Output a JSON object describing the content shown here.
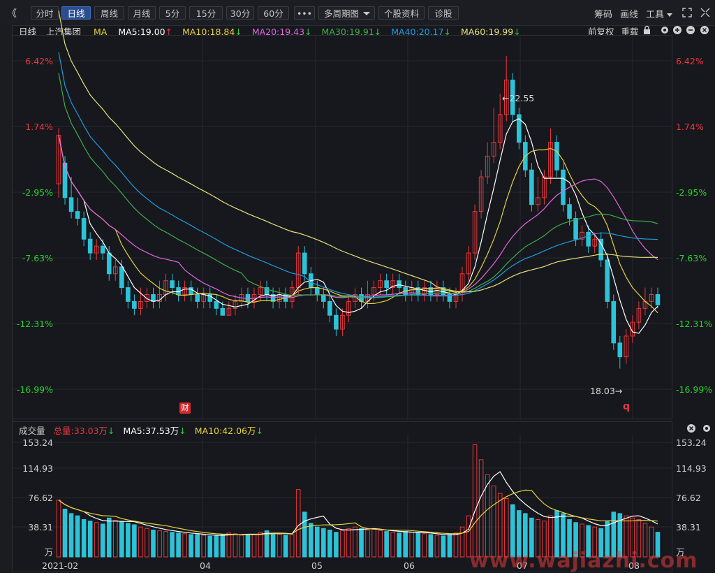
{
  "toolbar": {
    "back": "《",
    "tabs": [
      "分时",
      "日线",
      "周线",
      "月线",
      "5分",
      "15分",
      "30分",
      "60分"
    ],
    "active_tab": "日线",
    "more": "•••",
    "multi_period": "多周期图",
    "stock_info": "个股资料",
    "diagnose": "诊股",
    "right": [
      "筹码",
      "画线",
      "工具"
    ]
  },
  "legend": {
    "period": "日线",
    "stock": "上汽集团",
    "ma": "MA",
    "ma5": "MA5:19.00",
    "ma10": "MA10:18.84",
    "ma20": "MA20:19.43",
    "ma30": "MA30:19.91",
    "ma40": "MA40:20.17",
    "ma60": "MA60:19.99",
    "fq": "前复权",
    "reload": "重载"
  },
  "volume_legend": {
    "title": "成交量",
    "total": "总量:33.03万",
    "ma5": "MA5:37.53万",
    "ma10": "MA10:42.06万"
  },
  "price_axis": [
    "6.42%",
    "1.74%",
    "-2.95%",
    "-7.63%",
    "-12.31%",
    "-16.99%"
  ],
  "volume_axis": [
    "153.24",
    "114.93",
    "76.62",
    "38.31",
    "万"
  ],
  "x_axis": [
    "2021-02",
    "04",
    "05",
    "06",
    "07",
    "08"
  ],
  "annotations": {
    "high": "←22.55",
    "low": "18.03→",
    "fin_badge": "财",
    "q_badge": "q"
  },
  "watermark": "www.wajiazhi.com",
  "colors": {
    "up": "#e8383d",
    "down": "#2cc3d8",
    "ma5": "#ffffff",
    "ma10": "#e6d23c",
    "ma20": "#e066e0",
    "ma30": "#3fae4a",
    "ma40": "#1e9be0",
    "ma60": "#e8e27a",
    "bg": "#16181d"
  },
  "chart_data": {
    "type": "candlestick",
    "x_labels": [
      "2021-02",
      "04",
      "05",
      "06",
      "07",
      "08"
    ],
    "price_pct_ticks": [
      6.42,
      1.74,
      -2.95,
      -7.63,
      -12.31,
      -16.99
    ],
    "price_range": [
      18.03,
      22.55
    ],
    "volume_ticks": [
      153.24,
      114.93,
      76.62,
      38.31
    ],
    "volume_unit": "万",
    "candles": [
      [
        20.7,
        21.4,
        20.5,
        21.5
      ],
      [
        21.0,
        20.5,
        20.4,
        21.1
      ],
      [
        20.5,
        20.3,
        20.2,
        20.8
      ],
      [
        20.3,
        20.2,
        20.1,
        20.5
      ],
      [
        20.2,
        19.9,
        19.8,
        20.3
      ],
      [
        19.9,
        19.7,
        19.6,
        20.0
      ],
      [
        19.7,
        19.8,
        19.6,
        19.9
      ],
      [
        19.8,
        19.7,
        19.6,
        19.9
      ],
      [
        19.7,
        19.4,
        19.3,
        19.8
      ],
      [
        19.4,
        19.5,
        19.3,
        19.6
      ],
      [
        19.5,
        19.2,
        19.1,
        19.6
      ],
      [
        19.2,
        19.0,
        18.9,
        19.3
      ],
      [
        19.0,
        18.9,
        18.8,
        19.1
      ],
      [
        18.9,
        19.0,
        18.8,
        19.2
      ],
      [
        19.0,
        19.1,
        18.9,
        19.2
      ],
      [
        19.1,
        19.0,
        18.9,
        19.2
      ],
      [
        19.0,
        19.1,
        18.9,
        19.3
      ],
      [
        19.1,
        19.3,
        19.0,
        19.4
      ],
      [
        19.3,
        19.2,
        19.1,
        19.4
      ],
      [
        19.2,
        19.1,
        19.0,
        19.3
      ],
      [
        19.1,
        19.2,
        19.0,
        19.3
      ],
      [
        19.2,
        19.1,
        19.0,
        19.3
      ],
      [
        19.1,
        19.0,
        18.9,
        19.2
      ],
      [
        19.0,
        19.1,
        18.9,
        19.2
      ],
      [
        19.1,
        19.0,
        18.9,
        19.2
      ],
      [
        19.0,
        18.9,
        18.8,
        19.1
      ],
      [
        18.9,
        18.8,
        18.8,
        19.0
      ],
      [
        18.8,
        18.9,
        18.8,
        19.0
      ],
      [
        18.9,
        19.0,
        18.8,
        19.1
      ],
      [
        19.0,
        19.1,
        18.9,
        19.2
      ],
      [
        19.1,
        19.0,
        18.9,
        19.2
      ],
      [
        19.0,
        19.1,
        18.9,
        19.2
      ],
      [
        19.1,
        19.2,
        19.0,
        19.3
      ],
      [
        19.2,
        19.1,
        19.0,
        19.3
      ],
      [
        19.1,
        19.0,
        18.9,
        19.2
      ],
      [
        19.0,
        19.1,
        18.9,
        19.2
      ],
      [
        19.1,
        19.0,
        18.9,
        19.2
      ],
      [
        19.0,
        19.2,
        18.9,
        19.3
      ],
      [
        19.2,
        19.7,
        19.1,
        19.8
      ],
      [
        19.7,
        19.4,
        19.3,
        19.8
      ],
      [
        19.4,
        19.2,
        19.1,
        19.5
      ],
      [
        19.2,
        19.1,
        19.0,
        19.3
      ],
      [
        19.1,
        19.0,
        18.9,
        19.2
      ],
      [
        19.0,
        18.8,
        18.7,
        19.1
      ],
      [
        18.8,
        18.6,
        18.5,
        18.9
      ],
      [
        18.6,
        18.8,
        18.5,
        18.9
      ],
      [
        18.8,
        19.0,
        18.7,
        19.1
      ],
      [
        19.0,
        19.1,
        18.9,
        19.2
      ],
      [
        19.1,
        19.0,
        18.9,
        19.2
      ],
      [
        19.0,
        19.1,
        18.9,
        19.3
      ],
      [
        19.1,
        19.2,
        19.0,
        19.3
      ],
      [
        19.2,
        19.3,
        19.1,
        19.4
      ],
      [
        19.3,
        19.2,
        19.1,
        19.4
      ],
      [
        19.2,
        19.3,
        19.1,
        19.4
      ],
      [
        19.3,
        19.2,
        19.1,
        19.4
      ],
      [
        19.2,
        19.1,
        19.0,
        19.3
      ],
      [
        19.1,
        19.2,
        19.0,
        19.3
      ],
      [
        19.2,
        19.1,
        19.0,
        19.3
      ],
      [
        19.1,
        19.2,
        19.0,
        19.3
      ],
      [
        19.2,
        19.1,
        19.0,
        19.3
      ],
      [
        19.1,
        19.2,
        19.0,
        19.3
      ],
      [
        19.2,
        19.1,
        19.0,
        19.3
      ],
      [
        19.1,
        19.0,
        18.9,
        19.2
      ],
      [
        19.0,
        19.1,
        18.9,
        19.2
      ],
      [
        19.1,
        19.4,
        19.0,
        19.5
      ],
      [
        19.4,
        19.7,
        19.3,
        19.8
      ],
      [
        19.7,
        20.3,
        19.6,
        20.4
      ],
      [
        20.3,
        20.8,
        20.2,
        20.9
      ],
      [
        20.8,
        21.1,
        20.7,
        21.3
      ],
      [
        21.1,
        21.3,
        21.0,
        21.8
      ],
      [
        21.3,
        21.7,
        21.2,
        22.0
      ],
      [
        21.7,
        22.2,
        21.6,
        22.55
      ],
      [
        22.2,
        21.7,
        21.6,
        22.3
      ],
      [
        21.7,
        21.3,
        21.2,
        21.8
      ],
      [
        21.3,
        20.9,
        20.8,
        21.4
      ],
      [
        20.9,
        20.4,
        20.3,
        21.0
      ],
      [
        20.4,
        20.5,
        20.3,
        20.8
      ],
      [
        20.5,
        20.8,
        20.4,
        20.9
      ],
      [
        20.8,
        21.3,
        20.7,
        21.5
      ],
      [
        21.3,
        20.9,
        20.8,
        21.4
      ],
      [
        20.9,
        20.4,
        20.3,
        21.0
      ],
      [
        20.4,
        20.2,
        20.1,
        20.5
      ],
      [
        20.2,
        19.9,
        19.8,
        20.3
      ],
      [
        19.9,
        20.0,
        19.8,
        20.1
      ],
      [
        20.0,
        19.8,
        19.7,
        20.1
      ],
      [
        19.8,
        19.9,
        19.7,
        20.0
      ],
      [
        19.9,
        19.6,
        19.5,
        20.0
      ],
      [
        19.6,
        19.0,
        18.9,
        19.7
      ],
      [
        19.0,
        18.4,
        18.3,
        19.1
      ],
      [
        18.4,
        18.2,
        18.03,
        18.5
      ],
      [
        18.2,
        18.5,
        18.1,
        18.6
      ],
      [
        18.5,
        18.7,
        18.4,
        18.8
      ],
      [
        18.7,
        18.9,
        18.6,
        19.0
      ],
      [
        18.9,
        19.0,
        18.8,
        19.2
      ],
      [
        19.0,
        19.1,
        18.9,
        19.2
      ],
      [
        19.1,
        18.95,
        18.9,
        19.2
      ]
    ],
    "volumes": [
      76,
      64,
      58,
      55,
      50,
      48,
      46,
      44,
      52,
      49,
      47,
      45,
      43,
      40,
      38,
      36,
      35,
      34,
      33,
      32,
      31,
      30,
      30,
      29,
      28,
      28,
      30,
      32,
      31,
      29,
      30,
      30,
      33,
      35,
      31,
      30,
      29,
      30,
      90,
      60,
      45,
      40,
      38,
      36,
      33,
      35,
      38,
      40,
      38,
      36,
      37,
      35,
      34,
      33,
      32,
      34,
      33,
      32,
      31,
      30,
      29,
      28,
      30,
      32,
      40,
      55,
      150,
      130,
      110,
      95,
      85,
      78,
      70,
      62,
      58,
      52,
      50,
      48,
      55,
      62,
      58,
      50,
      46,
      44,
      42,
      40,
      38,
      48,
      60,
      58,
      55,
      52,
      50,
      45,
      40,
      33.03
    ]
  }
}
